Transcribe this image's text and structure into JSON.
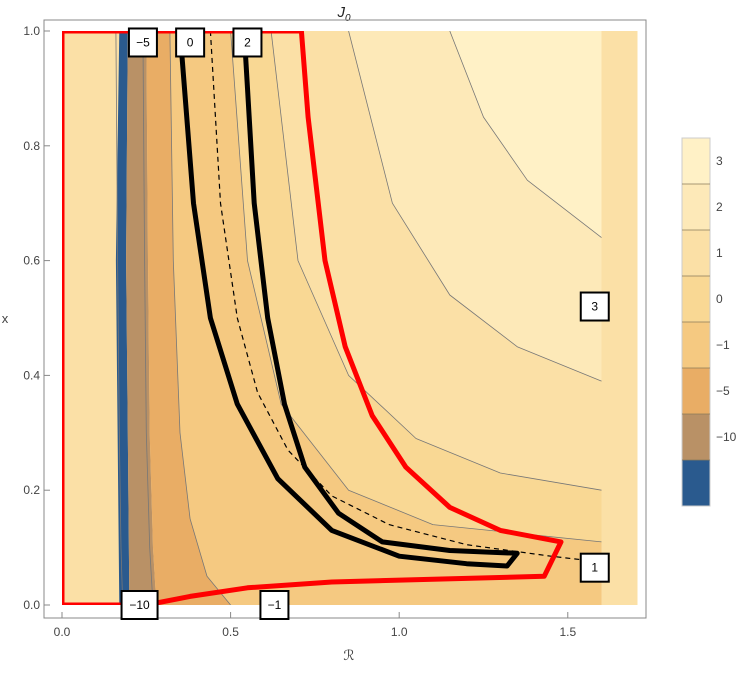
{
  "chart_data": {
    "type": "contour",
    "title": "J₀",
    "title_main": "J",
    "title_sub": "0",
    "xlabel": "ℛ",
    "ylabel": "x",
    "xlim": [
      0,
      1.6
    ],
    "ylim": [
      0,
      1.0
    ],
    "x_ticks": [
      {
        "value": 0.0,
        "label": "0.0"
      },
      {
        "value": 0.5,
        "label": "0.5"
      },
      {
        "value": 1.0,
        "label": "1.0"
      },
      {
        "value": 1.5,
        "label": "1.5"
      }
    ],
    "y_ticks": [
      {
        "value": 0.0,
        "label": "0.0"
      },
      {
        "value": 0.2,
        "label": "0.2"
      },
      {
        "value": 0.4,
        "label": "0.4"
      },
      {
        "value": 0.6,
        "label": "0.6"
      },
      {
        "value": 0.8,
        "label": "0.8"
      },
      {
        "value": 1.0,
        "label": "1.0"
      }
    ],
    "legend": {
      "placement": "right",
      "bands": [
        {
          "color": "#fff1c6"
        },
        {
          "color": "#fde9b8"
        },
        {
          "color": "#fbe0a6"
        },
        {
          "color": "#f9d894"
        },
        {
          "color": "#f5c981"
        },
        {
          "color": "#e9ad65"
        },
        {
          "color": "#b99166"
        },
        {
          "color": "#2a5a8e"
        }
      ],
      "labels": [
        "3",
        "2",
        "1",
        "0",
        "−1",
        "−5",
        "−10"
      ]
    },
    "contour_labels": [
      {
        "text": "−5",
        "r": 0.24,
        "x": 0.98
      },
      {
        "text": "0",
        "r": 0.38,
        "x": 0.98
      },
      {
        "text": "2",
        "r": 0.55,
        "x": 0.98
      },
      {
        "text": "3",
        "r": 1.58,
        "x": 0.52
      },
      {
        "text": "1",
        "r": 1.58,
        "x": 0.065
      },
      {
        "text": "−10",
        "r": 0.23,
        "x": 0.0
      },
      {
        "text": "−1",
        "r": 0.63,
        "x": 0.0
      }
    ],
    "series": [
      {
        "style": "red-boundary",
        "color": "#ff0000",
        "points": [
          [
            0.0,
            0.0
          ],
          [
            0.0,
            1.0
          ],
          [
            0.71,
            1.0
          ],
          [
            0.73,
            0.85
          ],
          [
            0.78,
            0.6
          ],
          [
            0.84,
            0.45
          ],
          [
            0.92,
            0.33
          ],
          [
            1.02,
            0.24
          ],
          [
            1.15,
            0.17
          ],
          [
            1.3,
            0.13
          ],
          [
            1.48,
            0.11
          ],
          [
            1.43,
            0.05
          ],
          [
            1.1,
            0.045
          ],
          [
            0.8,
            0.04
          ],
          [
            0.55,
            0.03
          ],
          [
            0.38,
            0.015
          ],
          [
            0.25,
            0.0
          ],
          [
            0.0,
            0.0
          ]
        ]
      },
      {
        "style": "black-contour",
        "color": "#000000",
        "points": [
          [
            0.35,
            1.0
          ],
          [
            0.39,
            0.7
          ],
          [
            0.44,
            0.5
          ],
          [
            0.52,
            0.35
          ],
          [
            0.64,
            0.22
          ],
          [
            0.8,
            0.13
          ],
          [
            1.0,
            0.085
          ],
          [
            1.2,
            0.072
          ],
          [
            1.32,
            0.068
          ],
          [
            1.35,
            0.09
          ],
          [
            1.15,
            0.095
          ],
          [
            0.95,
            0.11
          ],
          [
            0.82,
            0.16
          ],
          [
            0.72,
            0.24
          ],
          [
            0.66,
            0.35
          ],
          [
            0.61,
            0.5
          ],
          [
            0.57,
            0.7
          ],
          [
            0.55,
            0.9
          ],
          [
            0.54,
            1.0
          ]
        ]
      },
      {
        "style": "dashed",
        "color": "#000000",
        "points": [
          [
            0.44,
            1.0
          ],
          [
            0.47,
            0.7
          ],
          [
            0.52,
            0.5
          ],
          [
            0.58,
            0.37
          ],
          [
            0.67,
            0.27
          ],
          [
            0.8,
            0.19
          ],
          [
            0.97,
            0.14
          ],
          [
            1.2,
            0.105
          ],
          [
            1.45,
            0.085
          ],
          [
            1.6,
            0.075
          ]
        ]
      },
      {
        "style": "thin",
        "color": "#777777",
        "points": [
          [
            0.16,
            1.0
          ],
          [
            0.165,
            0.6
          ],
          [
            0.17,
            0.3
          ],
          [
            0.175,
            0.1
          ],
          [
            0.18,
            0.0
          ]
        ]
      },
      {
        "style": "thin",
        "color": "#777777",
        "points": [
          [
            0.24,
            1.0
          ],
          [
            0.245,
            0.6
          ],
          [
            0.25,
            0.3
          ],
          [
            0.26,
            0.1
          ],
          [
            0.27,
            0.0
          ]
        ]
      },
      {
        "style": "thin",
        "color": "#777777",
        "points": [
          [
            0.32,
            1.0
          ],
          [
            0.33,
            0.6
          ],
          [
            0.35,
            0.3
          ],
          [
            0.38,
            0.15
          ],
          [
            0.43,
            0.05
          ],
          [
            0.5,
            0.0
          ]
        ]
      },
      {
        "style": "thin",
        "color": "#777777",
        "points": [
          [
            0.5,
            1.0
          ],
          [
            0.55,
            0.6
          ],
          [
            0.65,
            0.35
          ],
          [
            0.85,
            0.2
          ],
          [
            1.1,
            0.14
          ],
          [
            1.6,
            0.11
          ]
        ]
      },
      {
        "style": "thin",
        "color": "#777777",
        "points": [
          [
            0.62,
            1.0
          ],
          [
            0.7,
            0.6
          ],
          [
            0.85,
            0.4
          ],
          [
            1.05,
            0.29
          ],
          [
            1.3,
            0.23
          ],
          [
            1.6,
            0.2
          ]
        ]
      },
      {
        "style": "thin",
        "color": "#777777",
        "points": [
          [
            0.85,
            1.0
          ],
          [
            0.98,
            0.7
          ],
          [
            1.15,
            0.54
          ],
          [
            1.35,
            0.45
          ],
          [
            1.6,
            0.39
          ]
        ]
      },
      {
        "style": "thin",
        "color": "#777777",
        "points": [
          [
            1.15,
            1.0
          ],
          [
            1.25,
            0.85
          ],
          [
            1.38,
            0.74
          ],
          [
            1.6,
            0.64
          ]
        ]
      }
    ],
    "regions": [
      {
        "level": "−10",
        "color": "#2a5a8e",
        "points": [
          [
            0.17,
            1.0
          ],
          [
            0.195,
            1.0
          ],
          [
            0.19,
            0.6
          ],
          [
            0.195,
            0.3
          ],
          [
            0.2,
            0.0
          ],
          [
            0.17,
            0.0
          ],
          [
            0.165,
            0.3
          ],
          [
            0.16,
            0.6
          ]
        ]
      },
      {
        "level": "−5",
        "color": "#b99166",
        "points": [
          [
            0.195,
            1.0
          ],
          [
            0.25,
            1.0
          ],
          [
            0.255,
            0.6
          ],
          [
            0.26,
            0.3
          ],
          [
            0.27,
            0.1
          ],
          [
            0.28,
            0.0
          ],
          [
            0.2,
            0.0
          ],
          [
            0.195,
            0.3
          ],
          [
            0.19,
            0.6
          ]
        ]
      },
      {
        "level": "−1",
        "color": "#e9ad65",
        "points": [
          [
            0.25,
            1.0
          ],
          [
            0.32,
            1.0
          ],
          [
            0.33,
            0.6
          ],
          [
            0.35,
            0.3
          ],
          [
            0.38,
            0.15
          ],
          [
            0.43,
            0.05
          ],
          [
            0.5,
            0.0
          ],
          [
            0.28,
            0.0
          ],
          [
            0.27,
            0.1
          ],
          [
            0.26,
            0.3
          ],
          [
            0.255,
            0.6
          ]
        ]
      },
      {
        "level": "0",
        "color": "#f5c981",
        "points": [
          [
            0.32,
            1.0
          ],
          [
            0.5,
            1.0
          ],
          [
            0.55,
            0.6
          ],
          [
            0.65,
            0.35
          ],
          [
            0.85,
            0.2
          ],
          [
            1.1,
            0.14
          ],
          [
            1.6,
            0.11
          ],
          [
            1.6,
            0.0
          ],
          [
            0.5,
            0.0
          ],
          [
            0.43,
            0.05
          ],
          [
            0.38,
            0.15
          ],
          [
            0.35,
            0.3
          ],
          [
            0.33,
            0.6
          ]
        ]
      },
      {
        "level": "1",
        "color": "#f9d894",
        "points": [
          [
            0.5,
            1.0
          ],
          [
            0.62,
            1.0
          ],
          [
            0.7,
            0.6
          ],
          [
            0.85,
            0.4
          ],
          [
            1.05,
            0.29
          ],
          [
            1.3,
            0.23
          ],
          [
            1.6,
            0.2
          ],
          [
            1.6,
            0.11
          ],
          [
            1.1,
            0.14
          ],
          [
            0.85,
            0.2
          ],
          [
            0.65,
            0.35
          ],
          [
            0.55,
            0.6
          ]
        ]
      },
      {
        "level": "2",
        "color": "#fbe0a6",
        "points": [
          [
            0.62,
            1.0
          ],
          [
            0.85,
            1.0
          ],
          [
            0.98,
            0.7
          ],
          [
            1.15,
            0.54
          ],
          [
            1.35,
            0.45
          ],
          [
            1.6,
            0.39
          ],
          [
            1.6,
            0.2
          ],
          [
            1.3,
            0.23
          ],
          [
            1.05,
            0.29
          ],
          [
            0.85,
            0.4
          ],
          [
            0.7,
            0.6
          ]
        ]
      },
      {
        "level": "3",
        "color": "#fde9b8",
        "points": [
          [
            0.85,
            1.0
          ],
          [
            1.15,
            1.0
          ],
          [
            1.25,
            0.85
          ],
          [
            1.38,
            0.74
          ],
          [
            1.6,
            0.64
          ],
          [
            1.6,
            0.39
          ],
          [
            1.35,
            0.45
          ],
          [
            1.15,
            0.54
          ],
          [
            0.98,
            0.7
          ]
        ]
      },
      {
        "level": "top",
        "color": "#fff1c6",
        "points": [
          [
            1.15,
            1.0
          ],
          [
            1.6,
            1.0
          ],
          [
            1.6,
            0.64
          ],
          [
            1.38,
            0.74
          ],
          [
            1.25,
            0.85
          ]
        ]
      }
    ]
  }
}
